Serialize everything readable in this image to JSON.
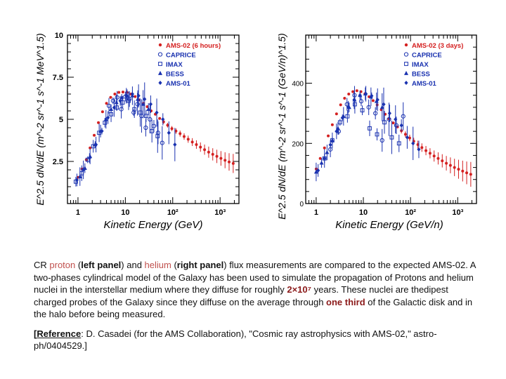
{
  "chart_data": [
    {
      "type": "scatter",
      "title": "",
      "xlabel": "Kinetic Energy (GeV)",
      "ylabel": "E^2.5 dN/dE (m^-2 sr^-1 s^-1 MeV^1.5)",
      "xscale": "log",
      "xlim": [
        0.6,
        2500
      ],
      "ylim": [
        0,
        10
      ],
      "yticks": [
        0,
        2.5,
        5,
        7.5,
        10
      ],
      "ytick_labels": [
        "",
        "2.5",
        "5",
        "7.5",
        "10"
      ],
      "xticks": [
        1,
        10,
        100,
        1000
      ],
      "xtick_labels": [
        "1",
        "10",
        "10²",
        "10³"
      ],
      "legend_position": "top-right",
      "series": [
        {
          "name": "AMS-02 (6 hours)",
          "color": "#d42020",
          "marker": "dot",
          "x": [
            1.0,
            1.22,
            1.5,
            1.8,
            2.2,
            2.7,
            3.3,
            4.0,
            4.9,
            6.0,
            7.3,
            8.9,
            10.8,
            13.2,
            16.1,
            19.6,
            24,
            29,
            35,
            43,
            53,
            64,
            78,
            96,
            117,
            143,
            174,
            212,
            259,
            316,
            385,
            470,
            574,
            700,
            854,
            1042,
            1272,
            1550,
            1892
          ],
          "y": [
            1.55,
            2.05,
            2.6,
            3.3,
            4.05,
            4.8,
            5.45,
            5.95,
            6.3,
            6.5,
            6.6,
            6.62,
            6.6,
            6.5,
            6.35,
            6.15,
            5.95,
            5.75,
            5.5,
            5.3,
            5.05,
            4.85,
            4.65,
            4.45,
            4.3,
            4.15,
            3.98,
            3.82,
            3.65,
            3.5,
            3.35,
            3.2,
            3.05,
            2.92,
            2.8,
            2.68,
            2.57,
            2.47,
            2.38
          ]
        },
        {
          "name": "CAPRICE",
          "color": "#1a32b0",
          "marker": "circle",
          "x": [
            4.5,
            5.5,
            6.7,
            8.2,
            10,
            12.2,
            15,
            18,
            22,
            27,
            33,
            40,
            49,
            60
          ],
          "y": [
            5.8,
            6.1,
            6.3,
            5.6,
            6.35,
            6.2,
            5.4,
            5.9,
            5.2,
            4.5,
            5.0,
            4.6,
            4.2,
            3.6
          ]
        },
        {
          "name": "IMAX",
          "color": "#1a32b0",
          "marker": "square",
          "x": [
            0.9,
            1.2,
            1.6,
            2.1,
            2.8,
            3.7,
            5.0,
            6.6,
            8.8,
            11.7,
            15.5,
            20.6,
            27.4,
            36.4,
            48
          ],
          "y": [
            1.3,
            1.8,
            2.6,
            3.4,
            4.2,
            4.8,
            5.3,
            5.7,
            6.0,
            6.1,
            5.6,
            5.4,
            5.2,
            4.3,
            4.0
          ]
        },
        {
          "name": "BESS",
          "color": "#1a32b0",
          "marker": "triangle",
          "x": [
            1.1,
            1.4,
            1.8,
            2.3,
            3.0,
            3.9,
            5.0,
            6.5,
            8.4,
            10.9,
            14.1,
            18.3,
            23.7,
            30.7
          ],
          "y": [
            1.6,
            2.1,
            2.8,
            3.5,
            4.3,
            5.0,
            5.6,
            6.0,
            6.3,
            6.4,
            6.4,
            6.2,
            5.9,
            5.6
          ]
        },
        {
          "name": "AMS-01",
          "color": "#1a32b0",
          "marker": "diamond",
          "x": [
            0.95,
            1.3,
            1.75,
            2.4,
            3.2,
            4.3,
            5.8,
            7.8,
            10.5,
            14.1,
            19,
            25.5,
            34.3,
            46,
            62,
            83,
            111
          ],
          "y": [
            1.4,
            2.0,
            2.7,
            3.5,
            4.3,
            5.1,
            5.7,
            6.1,
            6.4,
            6.5,
            6.4,
            6.2,
            5.9,
            5.4,
            5.0,
            4.2,
            3.5
          ]
        }
      ]
    },
    {
      "type": "scatter",
      "title": "",
      "xlabel": "Kinetic Energy (GeV/n)",
      "ylabel": "E^2.5 dN/dE (m^-2 sr^-1 s^-1 (GeV/n)^1.5)",
      "xscale": "log",
      "xlim": [
        0.6,
        2500
      ],
      "ylim": [
        0,
        560
      ],
      "yticks": [
        0,
        200,
        400
      ],
      "ytick_labels": [
        "0",
        "200",
        "400"
      ],
      "xticks": [
        1,
        10,
        100,
        1000
      ],
      "xtick_labels": [
        "1",
        "10",
        "10²",
        "10³"
      ],
      "legend_position": "top-right",
      "series": [
        {
          "name": "AMS-02 (3 days)",
          "color": "#d42020",
          "marker": "dot",
          "x": [
            1.0,
            1.22,
            1.5,
            1.8,
            2.2,
            2.7,
            3.3,
            4.0,
            4.9,
            6.0,
            7.3,
            8.9,
            10.8,
            13.2,
            16.1,
            19.6,
            24,
            29,
            35,
            43,
            53,
            64,
            78,
            96,
            117,
            143,
            174,
            212,
            259,
            316,
            385,
            470,
            574,
            700,
            854,
            1042,
            1272,
            1550,
            1892
          ],
          "y": [
            115,
            150,
            185,
            225,
            262,
            298,
            328,
            350,
            364,
            372,
            375,
            372,
            365,
            355,
            342,
            328,
            312,
            297,
            282,
            268,
            255,
            242,
            230,
            218,
            207,
            196,
            186,
            176,
            167,
            158,
            150,
            142,
            134,
            127,
            120,
            114,
            108,
            102,
            97
          ]
        },
        {
          "name": "CAPRICE",
          "color": "#1a32b0",
          "marker": "circle",
          "x": [
            2.0,
            3.0,
            4.5,
            6.5,
            9.0,
            13,
            18,
            25,
            35,
            50,
            70
          ],
          "y": [
            180,
            240,
            330,
            360,
            340,
            320,
            300,
            210,
            280,
            260,
            290
          ]
        },
        {
          "name": "IMAX",
          "color": "#1a32b0",
          "marker": "square",
          "x": [
            1.5,
            2.2,
            3.2,
            4.6,
            6.6,
            9.5,
            13.6,
            19.5,
            28,
            40,
            57
          ],
          "y": [
            150,
            210,
            270,
            290,
            330,
            310,
            250,
            230,
            270,
            220,
            200
          ]
        },
        {
          "name": "BESS",
          "color": "#1a32b0",
          "marker": "triangle",
          "x": [
            1.0,
            1.3,
            1.7,
            2.2,
            2.9,
            3.8,
            5.0,
            6.5,
            8.5,
            11,
            14.5,
            19,
            25
          ],
          "y": [
            105,
            135,
            170,
            210,
            250,
            290,
            320,
            345,
            360,
            365,
            355,
            340,
            320
          ]
        },
        {
          "name": "AMS-01",
          "color": "#1a32b0",
          "marker": "diamond",
          "x": [
            1.1,
            1.5,
            2.0,
            2.7,
            3.6,
            4.8,
            6.4,
            8.5,
            11.3,
            15,
            20,
            27,
            36,
            48,
            64,
            85,
            113,
            150
          ],
          "y": [
            110,
            150,
            195,
            240,
            285,
            320,
            345,
            360,
            365,
            358,
            345,
            330,
            300,
            280,
            260,
            220,
            200,
            180
          ]
        }
      ]
    }
  ],
  "caption": {
    "t1": "CR ",
    "proton": "proton",
    "t2": " (",
    "left_panel": "left panel",
    "t3": ") and ",
    "helium": "helium",
    "t4": " (",
    "right_panel": "right panel",
    "t5": ") flux measurements are compared to the expected AMS-02. A two-phases cylindrical model of the Galaxy has been used to simulate the propagation of Protons and helium nuclei in the interstellar medium where they diffuse for roughly ",
    "years_value": "2×10⁷",
    "t6": " years. These nuclei are thedipest charged probes of the Galaxy since they diffuse on the average through ",
    "one_third": "one third",
    "t7": " of the Galactic disk and in the halo before being measured."
  },
  "reference": {
    "open": "[",
    "label": "Reference",
    "colon": ":",
    "text": " D. Casadei (for the AMS Collaboration), \"Cosmic ray astrophysics with AMS-02,\" astro-ph/0404529.]"
  },
  "colors": {
    "ams02": "#d42020",
    "other": "#1a32b0",
    "axis": "#000000"
  }
}
